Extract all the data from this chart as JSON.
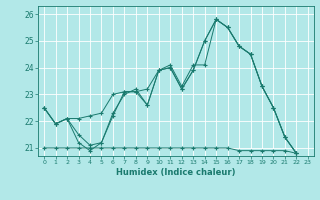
{
  "title": "",
  "xlabel": "Humidex (Indice chaleur)",
  "background_color": "#b2e8e8",
  "grid_color": "#ffffff",
  "line_color": "#1a7a6e",
  "xlim": [
    -0.5,
    23.5
  ],
  "ylim": [
    20.7,
    26.3
  ],
  "yticks": [
    21,
    22,
    23,
    24,
    25,
    26
  ],
  "xticks": [
    0,
    1,
    2,
    3,
    4,
    5,
    6,
    7,
    8,
    9,
    10,
    11,
    12,
    13,
    14,
    15,
    16,
    17,
    18,
    19,
    20,
    21,
    22,
    23
  ],
  "series1_y": [
    22.5,
    21.9,
    22.1,
    21.2,
    20.9,
    21.2,
    22.2,
    23.1,
    23.1,
    22.6,
    23.9,
    24.0,
    23.2,
    23.9,
    25.0,
    25.8,
    25.5,
    24.8,
    24.5,
    23.3,
    22.5,
    21.4,
    20.8
  ],
  "series2_y": [
    22.5,
    21.9,
    22.1,
    21.5,
    21.1,
    21.2,
    22.3,
    23.0,
    23.2,
    22.6,
    23.9,
    24.0,
    23.2,
    23.9,
    25.0,
    25.8,
    25.5,
    24.8,
    24.5,
    23.3,
    22.5,
    21.4,
    20.8
  ],
  "series3_y": [
    22.5,
    21.9,
    22.1,
    22.1,
    22.2,
    22.3,
    23.0,
    23.1,
    23.1,
    23.2,
    23.9,
    24.1,
    23.3,
    24.1,
    24.1,
    25.8,
    25.5,
    24.8,
    24.5,
    23.3,
    22.5,
    21.4,
    20.8
  ],
  "series4_y": [
    21.0,
    21.0,
    21.0,
    21.0,
    21.0,
    21.0,
    21.0,
    21.0,
    21.0,
    21.0,
    21.0,
    21.0,
    21.0,
    21.0,
    21.0,
    21.0,
    21.0,
    20.9,
    20.9,
    20.9,
    20.9,
    20.9,
    20.8
  ],
  "figsize": [
    3.2,
    2.0
  ],
  "dpi": 100
}
